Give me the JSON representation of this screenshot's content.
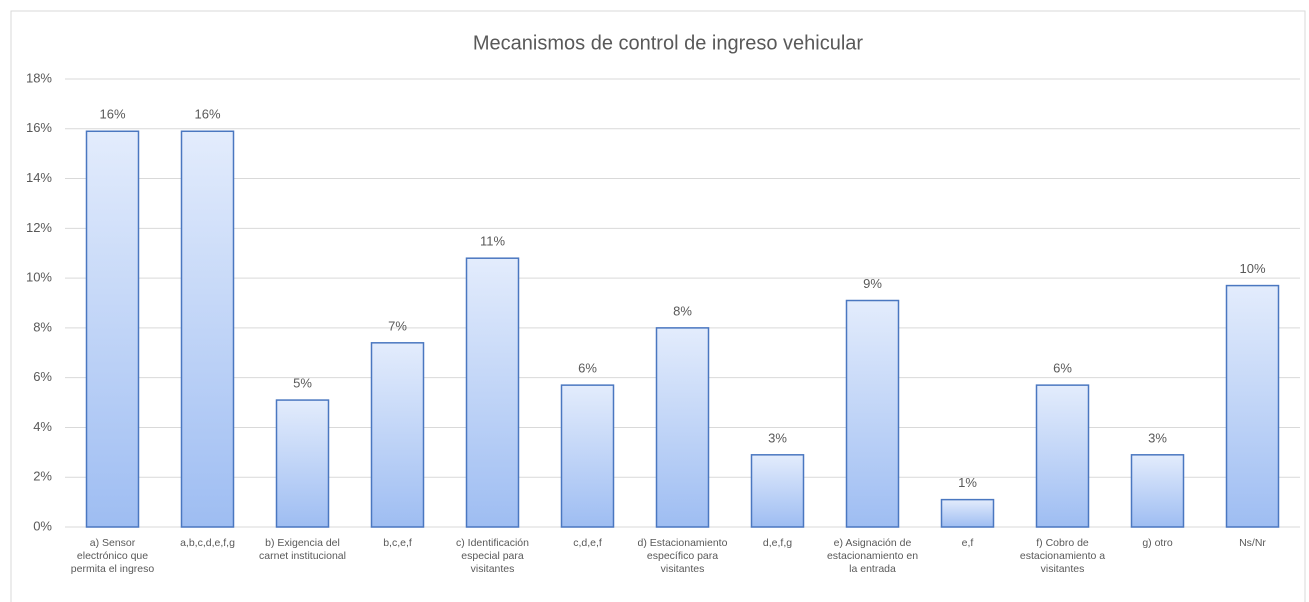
{
  "chart_data": {
    "type": "bar",
    "title": "Mecanismos de control de ingreso vehicular",
    "categories": [
      "a) Sensor electrónico que permita el ingreso",
      "a,b,c,d,e,f,g",
      "b) Exigencia del carnet institucional",
      "b,c,e,f",
      "c) Identificación especial para visitantes",
      "c,d,e,f",
      "d) Estacionamiento específico para visitantes",
      "d,e,f,g",
      "e) Asignación de estacionamiento en la entrada",
      "e,f",
      "f) Cobro de estacionamiento a visitantes",
      "g) otro",
      "Ns/Nr"
    ],
    "values": [
      15.9,
      15.9,
      5.1,
      7.4,
      10.8,
      5.7,
      8.0,
      2.9,
      9.1,
      1.1,
      5.7,
      2.9,
      9.7
    ],
    "value_labels": [
      "16%",
      "16%",
      "5%",
      "7%",
      "11%",
      "6%",
      "8%",
      "3%",
      "9%",
      "1%",
      "6%",
      "3%",
      "10%"
    ],
    "color": "#4a77c0",
    "ylim": [
      0,
      18
    ],
    "yticks": [
      {
        "value": 0,
        "label": "0%"
      },
      {
        "value": 2,
        "label": "2%"
      },
      {
        "value": 4,
        "label": "4%"
      },
      {
        "value": 6,
        "label": "6%"
      },
      {
        "value": 8,
        "label": "8%"
      },
      {
        "value": 10,
        "label": "10%"
      },
      {
        "value": 12,
        "label": "12%"
      },
      {
        "value": 14,
        "label": "14%"
      },
      {
        "value": 16,
        "label": "16%"
      },
      {
        "value": 18,
        "label": "18%"
      }
    ],
    "grid": true
  }
}
